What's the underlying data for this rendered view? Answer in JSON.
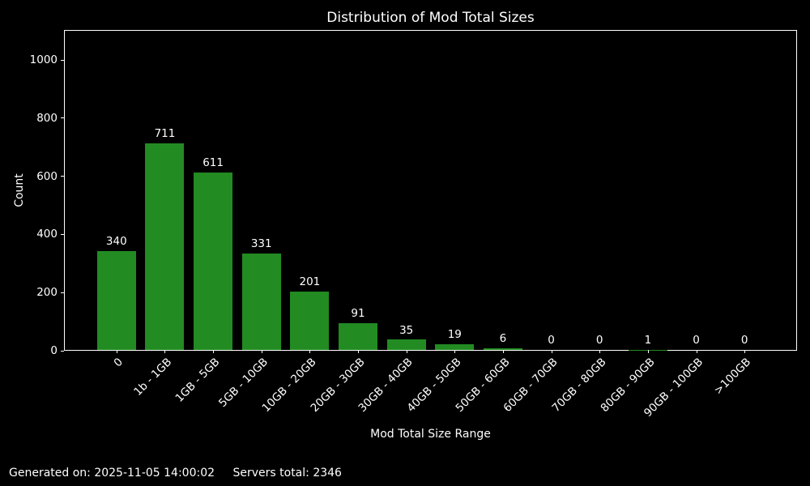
{
  "title": "Distribution of Mod Total Sizes",
  "footer": {
    "generated": "Generated on: 2025-11-05 14:00:02",
    "servers_total": "Servers total: 2346"
  },
  "chart_data": {
    "type": "bar",
    "title": "Distribution of Mod Total Sizes",
    "categories": [
      "0",
      "1b - 1GB",
      "1GB - 5GB",
      "5GB - 10GB",
      "10GB - 20GB",
      "20GB - 30GB",
      "30GB - 40GB",
      "40GB - 50GB",
      "50GB - 60GB",
      "60GB - 70GB",
      "70GB - 80GB",
      "80GB - 90GB",
      "90GB - 100GB",
      ">100GB"
    ],
    "values": [
      340,
      711,
      611,
      331,
      201,
      91,
      35,
      19,
      6,
      0,
      0,
      1,
      0,
      0
    ],
    "xlabel": "Mod Total Size Range",
    "ylabel": "Count",
    "ylim": [
      0,
      1103
    ],
    "yticks": [
      0,
      200,
      400,
      600,
      800,
      1000
    ],
    "x_tick_rotation": 45,
    "grid": false,
    "legend": null,
    "bar_color": "#228B22",
    "background_color": "#000000",
    "text_color": "#ffffff"
  }
}
